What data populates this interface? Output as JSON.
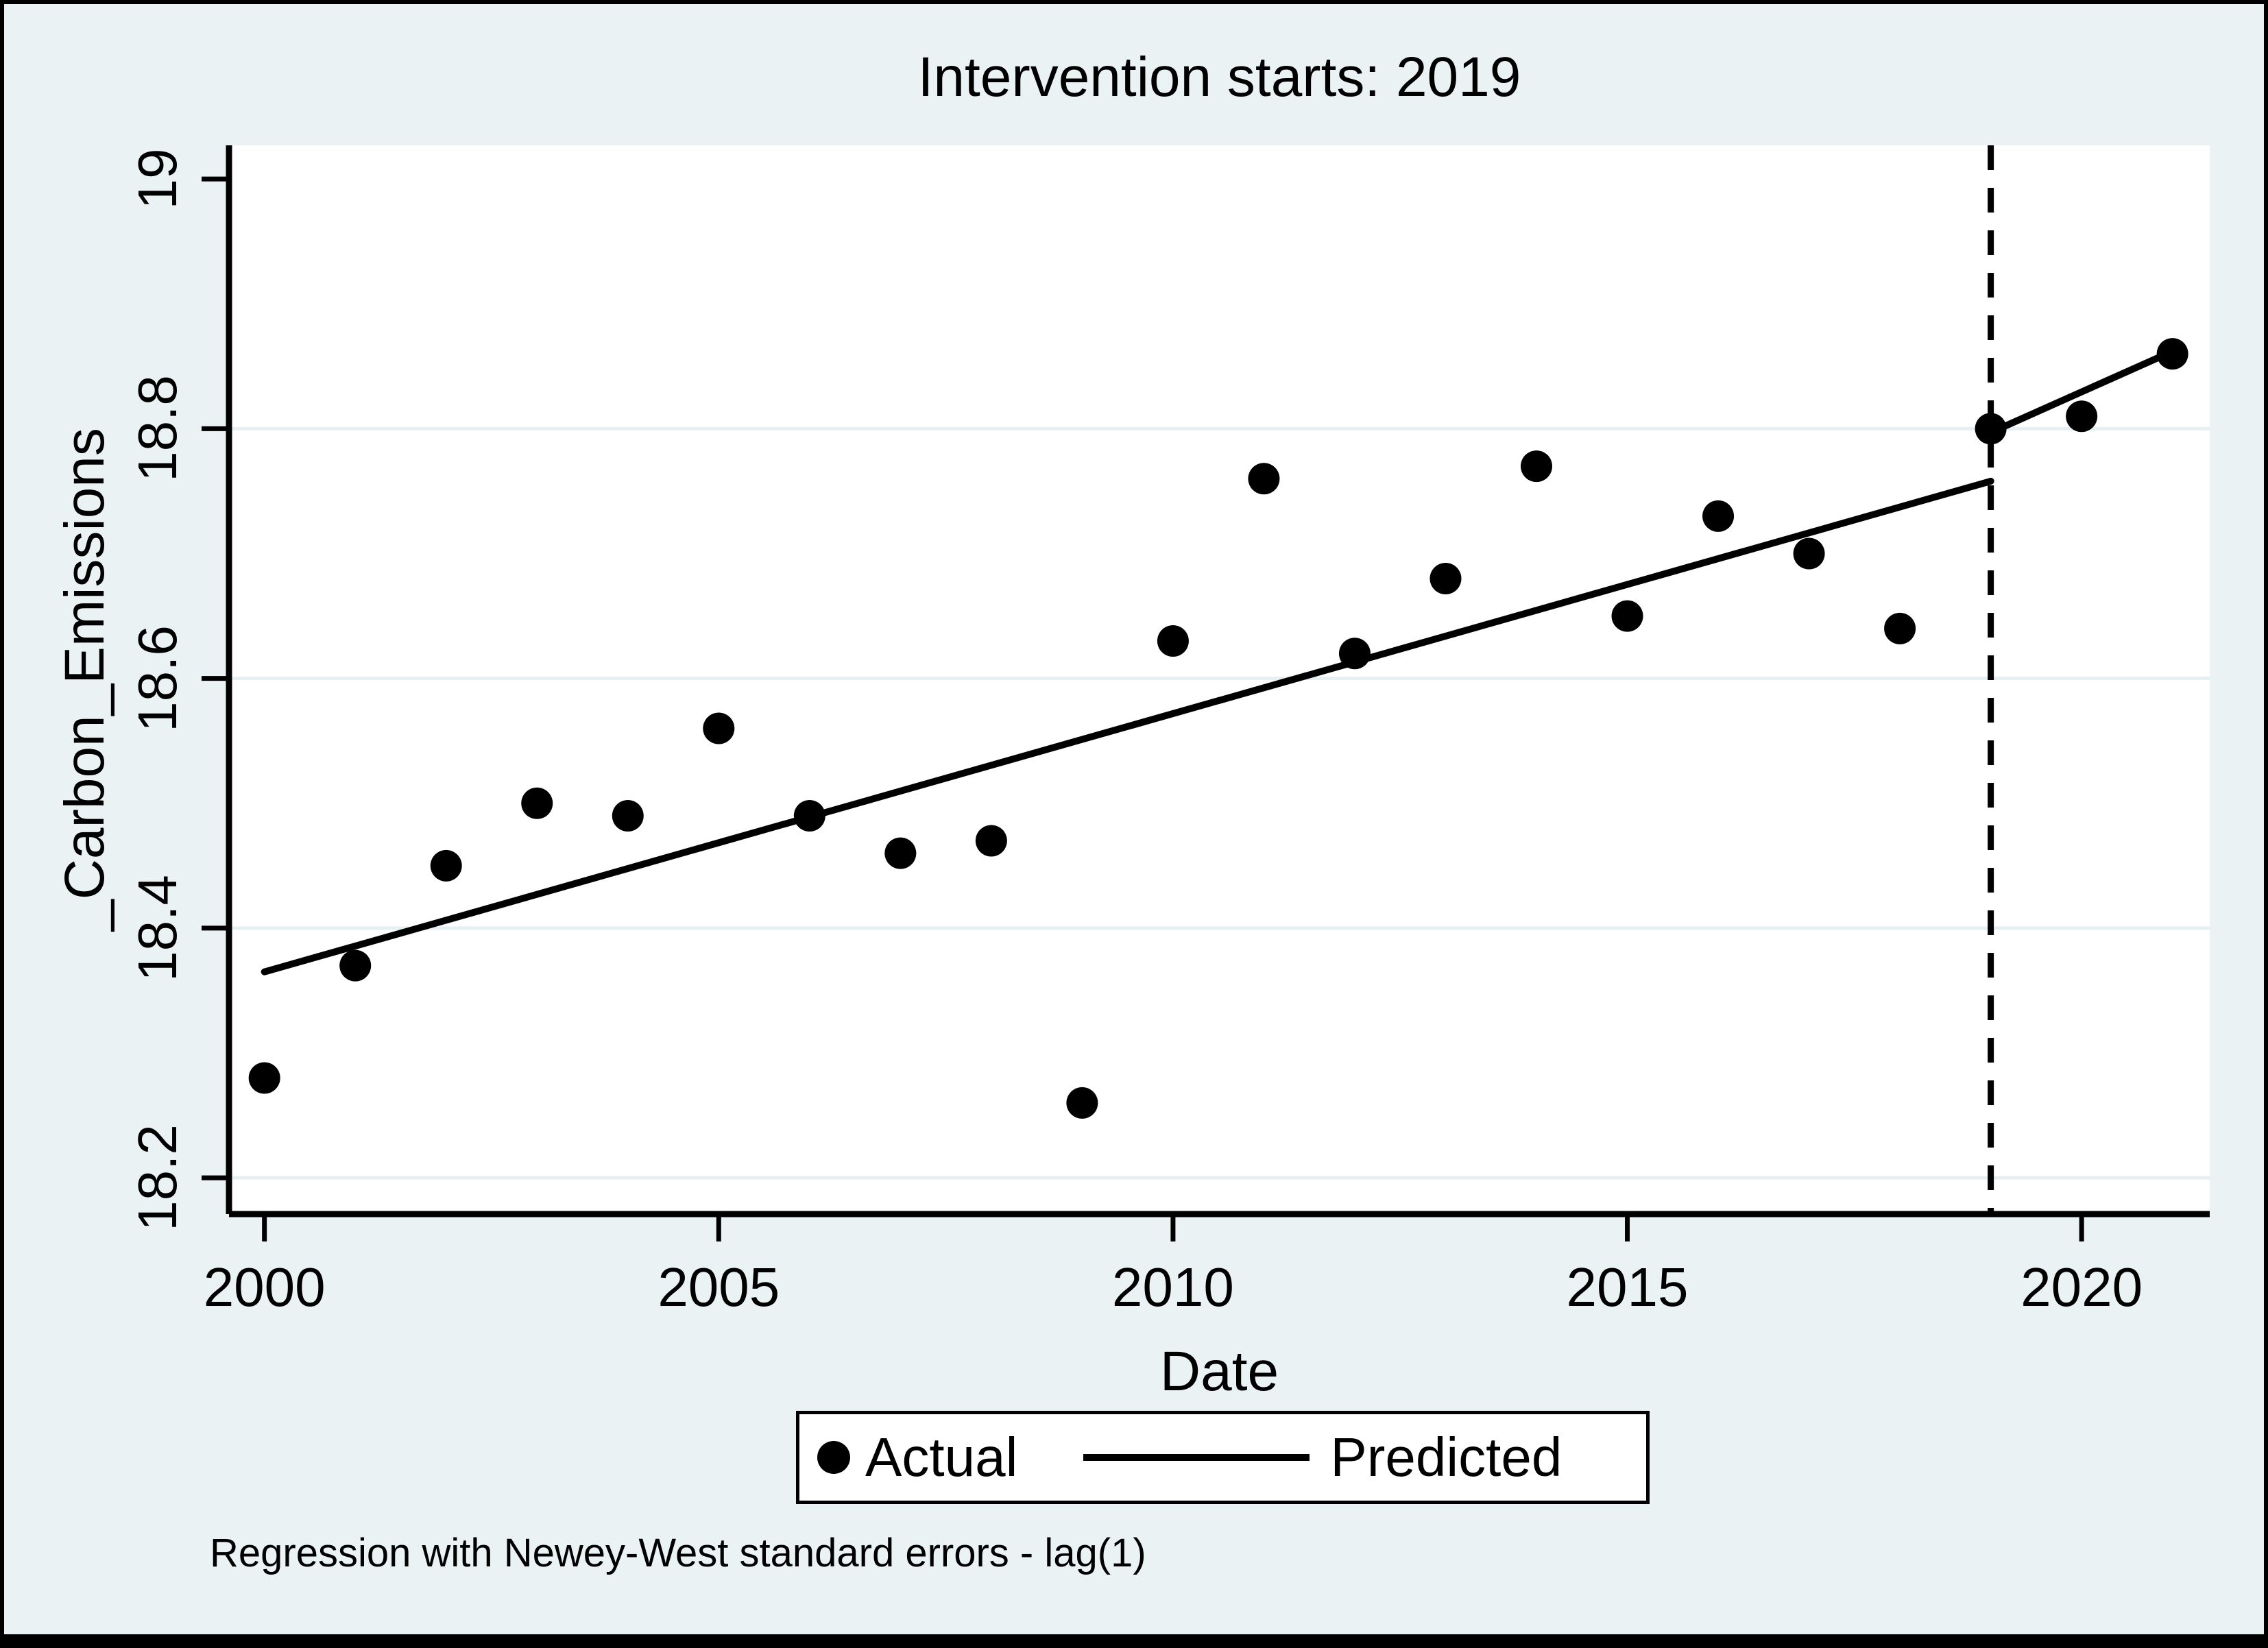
{
  "chart_data": {
    "type": "scatter",
    "title": "Intervention starts: 2019",
    "xlabel": "Date",
    "ylabel": "_Carbon_Emissions",
    "note": "Regression with Newey-West standard errors - lag(1)",
    "x_ticks": [
      2000,
      2005,
      2010,
      2015,
      2020
    ],
    "y_ticks": [
      18.2,
      18.4,
      18.6,
      18.8,
      19
    ],
    "grid_y": [
      18.2,
      18.4,
      18.6,
      18.8
    ],
    "xlim": [
      1999.61,
      2021.41
    ],
    "ylim": [
      18.171,
      19.027
    ],
    "grid": "horizontal",
    "intervention_line": {
      "x": 2019,
      "style": "dashed"
    },
    "legend": {
      "position": "bottom-center",
      "items": [
        {
          "label": "Actual",
          "marker": "circle"
        },
        {
          "label": "Predicted",
          "marker": "line"
        }
      ]
    },
    "series": [
      {
        "name": "Actual",
        "type": "scatter",
        "points": [
          [
            2000,
            18.28
          ],
          [
            2001,
            18.37
          ],
          [
            2002,
            18.45
          ],
          [
            2003,
            18.5
          ],
          [
            2004,
            18.49
          ],
          [
            2005,
            18.56
          ],
          [
            2006,
            18.49
          ],
          [
            2007,
            18.46
          ],
          [
            2008,
            18.47
          ],
          [
            2009,
            18.26
          ],
          [
            2010,
            18.63
          ],
          [
            2011,
            18.76
          ],
          [
            2012,
            18.62
          ],
          [
            2013,
            18.68
          ],
          [
            2014,
            18.77
          ],
          [
            2015,
            18.65
          ],
          [
            2016,
            18.73
          ],
          [
            2017,
            18.7
          ],
          [
            2018,
            18.64
          ],
          [
            2019,
            18.8
          ],
          [
            2020,
            18.81
          ],
          [
            2021,
            18.86
          ]
        ]
      },
      {
        "name": "Predicted",
        "type": "line",
        "segments": [
          [
            [
              2000,
              18.365
            ],
            [
              2019,
              18.758
            ]
          ],
          [
            [
              2019,
              18.797
            ],
            [
              2021,
              18.862
            ]
          ]
        ]
      }
    ],
    "colors": {
      "background": "#EAF2F3",
      "plot_background": "#FFFFFF",
      "grid": "#E6EFF1",
      "data": "#000000"
    }
  }
}
